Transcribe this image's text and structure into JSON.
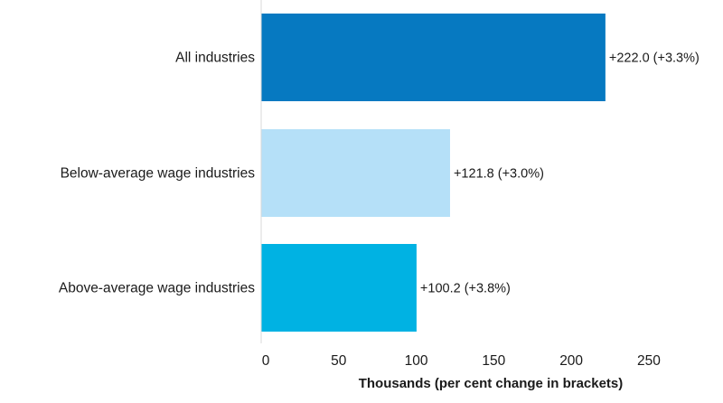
{
  "chart_data": {
    "type": "bar",
    "orientation": "horizontal",
    "categories": [
      "All industries",
      "Below-average wage industries",
      "Above-average wage industries"
    ],
    "values": [
      222.0,
      121.8,
      100.2
    ],
    "data_labels": [
      "+222.0 (+3.3%)",
      "+121.8 (+3.0%)",
      "+100.2 (+3.8%)"
    ],
    "colors": [
      "#0679c1",
      "#b5e0f8",
      "#00b2e3"
    ],
    "xlabel": "Thousands (per cent change in brackets)",
    "ylabel": "",
    "xticks": [
      0,
      50,
      100,
      150,
      200,
      250
    ],
    "xlim": [
      0,
      300
    ],
    "grid": false,
    "legend": "none"
  }
}
